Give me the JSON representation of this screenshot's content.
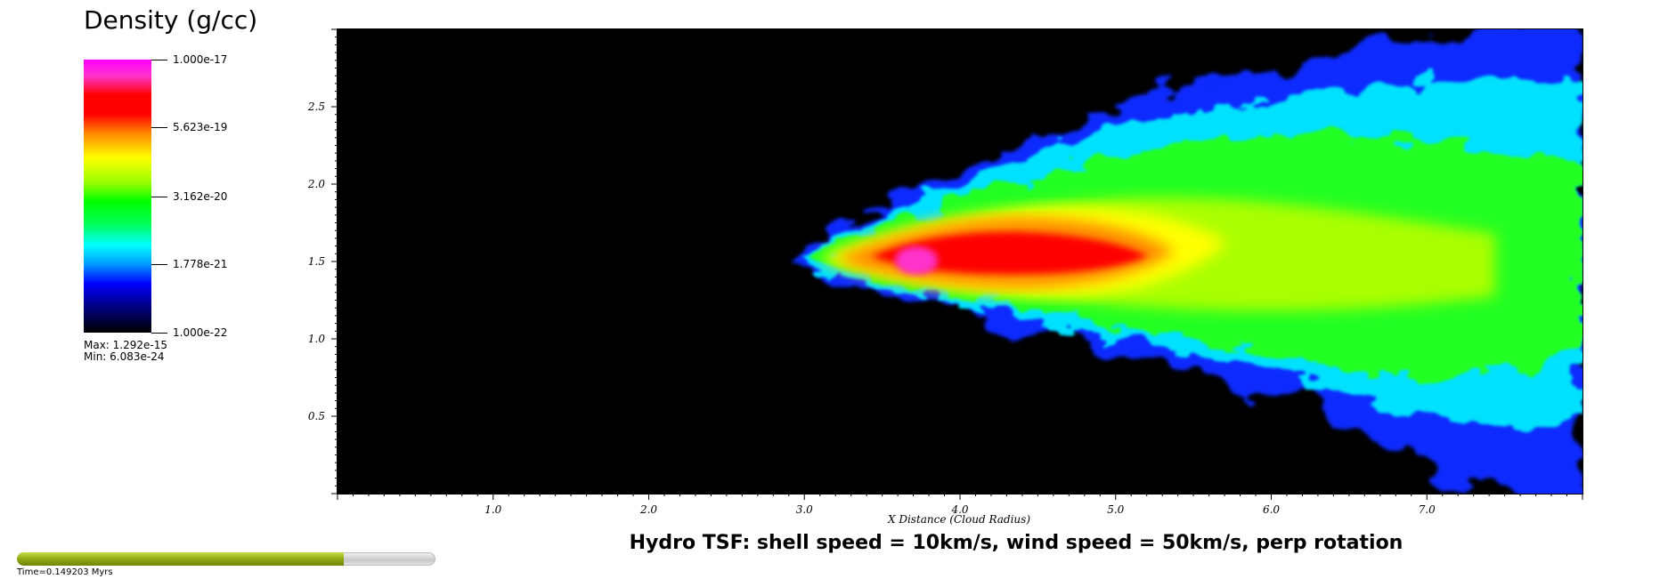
{
  "legend": {
    "title": "Density (g/cc)",
    "ticks": [
      "1.000e-17",
      "5.623e-19",
      "3.162e-20",
      "1.778e-21",
      "1.000e-22"
    ],
    "max_label": "Max:  1.292e-15",
    "min_label": "Min:  6.083e-24",
    "colormap": [
      "#ff00ff",
      "#ff0000",
      "#ffff00",
      "#00ff00",
      "#00ffff",
      "#0000ff",
      "#000000"
    ]
  },
  "title": "Hydro TSF: shell speed = 10km/s, wind speed = 50km/s, perp rotation",
  "time": {
    "label": "Time=0.149203 Myrs",
    "progress": 0.78
  },
  "chart_data": {
    "type": "heatmap",
    "quantity": "Density (g/cc)",
    "color_scale": "log",
    "color_range": [
      1e-22,
      1e-17
    ],
    "data_max": 1.292e-15,
    "data_min": 6.083e-24,
    "xlabel": "X Distance (Cloud Radius)",
    "ylabel": "",
    "xlim": [
      0.0,
      8.0
    ],
    "ylim": [
      0.0,
      3.0
    ],
    "x_ticks": [
      "1.0",
      "2.0",
      "3.0",
      "4.0",
      "5.0",
      "6.0",
      "7.0"
    ],
    "y_ticks": [
      "0.5",
      "1.0",
      "1.5",
      "2.0",
      "2.5"
    ],
    "structure": {
      "description_points": [
        {
          "x": 3.0,
          "y": 1.5,
          "level": "low"
        },
        {
          "x": 3.7,
          "y": 1.5,
          "level": "peak"
        },
        {
          "x": 4.5,
          "y": 1.5,
          "level": "high"
        },
        {
          "x": 6.0,
          "y": 1.5,
          "level": "medium"
        },
        {
          "x": 7.5,
          "y": 1.8,
          "level": "medium-low"
        }
      ]
    }
  }
}
